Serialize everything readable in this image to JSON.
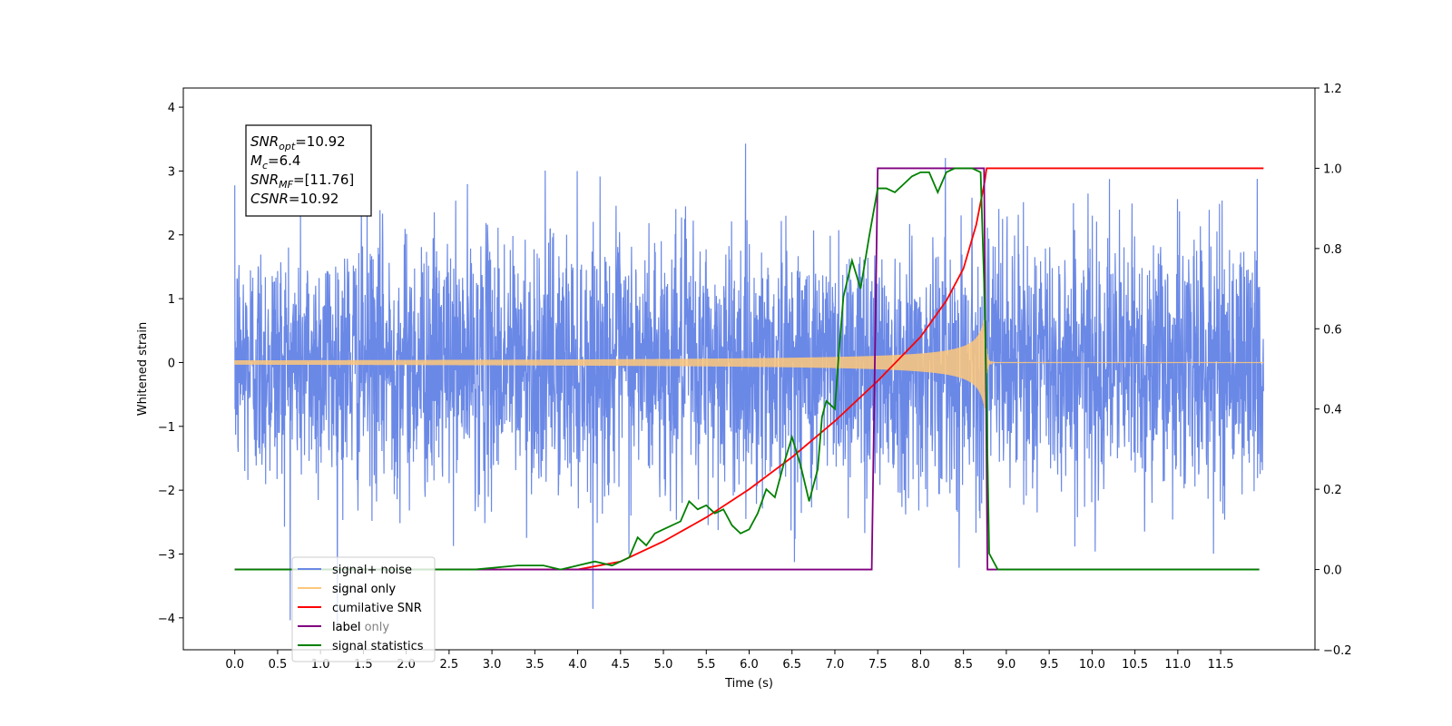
{
  "chart_data": {
    "type": "line",
    "title": "",
    "xlabel": "Time (s)",
    "ylabel": "Whitened strain",
    "xlim": [
      -0.6,
      12.6
    ],
    "ylim": [
      -4.5,
      4.3
    ],
    "y2lim": [
      -0.2,
      1.2
    ],
    "x_ticks": [
      0.0,
      0.5,
      1.0,
      1.5,
      2.0,
      2.5,
      3.0,
      3.5,
      4.0,
      4.5,
      5.0,
      5.5,
      6.0,
      6.5,
      7.0,
      7.5,
      8.0,
      8.5,
      9.0,
      9.5,
      10.0,
      10.5,
      11.0,
      11.5
    ],
    "x_tick_labels": [
      "0.0",
      "0.5",
      "1.0",
      "1.5",
      "2.0",
      "2.5",
      "3.0",
      "3.5",
      "4.0",
      "4.5",
      "5.0",
      "5.5",
      "6.0",
      "6.5",
      "7.0",
      "7.5",
      "8.0",
      "8.5",
      "9.0",
      "9.5",
      "10.0",
      "10.5",
      "11.0",
      "11.5"
    ],
    "y_ticks": [
      -4,
      -3,
      -2,
      -1,
      0,
      1,
      2,
      3,
      4
    ],
    "y_tick_labels": [
      "−4",
      "−3",
      "−2",
      "−1",
      "0",
      "1",
      "2",
      "3",
      "4"
    ],
    "y2_ticks": [
      -0.2,
      0.0,
      0.2,
      0.4,
      0.6,
      0.8,
      1.0,
      1.2
    ],
    "y2_tick_labels": [
      "−0.2",
      "0.0",
      "0.2",
      "0.4",
      "0.6",
      "0.8",
      "1.0",
      "1.2"
    ],
    "grid": false,
    "legend_position": "lower-left",
    "series": [
      {
        "name": "signal+ noise",
        "color": "#6a88e6",
        "axis": "left",
        "description_kind": "noise",
        "x_range": [
          0.0,
          12.0
        ],
        "noise_std": 1.0,
        "peak_range": [
          -4.1,
          3.9
        ]
      },
      {
        "name": "signal only",
        "color": "#fec87a",
        "axis": "left",
        "description_kind": "chirp",
        "x_range": [
          0.0,
          12.0
        ],
        "merger_time": 8.75,
        "peak_amplitude": 0.75
      },
      {
        "name": "cumilative SNR",
        "color": "#ff0000",
        "axis": "right",
        "x": [
          0.0,
          4.0,
          4.5,
          5.0,
          5.5,
          6.0,
          6.5,
          7.0,
          7.5,
          8.0,
          8.3,
          8.5,
          8.65,
          8.75,
          8.77,
          12.0
        ],
        "y": [
          0.0,
          0.0,
          0.02,
          0.07,
          0.13,
          0.2,
          0.28,
          0.37,
          0.47,
          0.58,
          0.67,
          0.75,
          0.86,
          0.97,
          1.0,
          1.0
        ]
      },
      {
        "name": "label",
        "color": "#800080",
        "axis": "right",
        "x": [
          0.0,
          7.43,
          7.5,
          8.74,
          8.78,
          11.95
        ],
        "y": [
          0.0,
          0.0,
          1.0,
          1.0,
          0.0,
          0.0
        ]
      },
      {
        "name": "signal statistics",
        "color": "#008000",
        "axis": "right",
        "x": [
          0.0,
          2.8,
          3.3,
          3.6,
          3.8,
          4.0,
          4.2,
          4.4,
          4.6,
          4.7,
          4.8,
          4.9,
          5.0,
          5.2,
          5.3,
          5.4,
          5.5,
          5.6,
          5.7,
          5.8,
          5.9,
          6.0,
          6.1,
          6.2,
          6.3,
          6.4,
          6.5,
          6.6,
          6.7,
          6.8,
          6.85,
          6.9,
          7.0,
          7.05,
          7.1,
          7.2,
          7.3,
          7.4,
          7.5,
          7.6,
          7.7,
          7.8,
          7.9,
          8.0,
          8.1,
          8.2,
          8.3,
          8.4,
          8.5,
          8.6,
          8.7,
          8.75,
          8.8,
          8.9,
          9.0,
          11.95
        ],
        "y": [
          0.0,
          0.0,
          0.01,
          0.01,
          0.0,
          0.01,
          0.02,
          0.01,
          0.03,
          0.08,
          0.06,
          0.09,
          0.1,
          0.12,
          0.17,
          0.15,
          0.16,
          0.14,
          0.15,
          0.11,
          0.09,
          0.1,
          0.14,
          0.2,
          0.18,
          0.26,
          0.33,
          0.26,
          0.17,
          0.25,
          0.38,
          0.42,
          0.4,
          0.55,
          0.68,
          0.77,
          0.7,
          0.83,
          0.95,
          0.95,
          0.94,
          0.96,
          0.98,
          0.99,
          0.99,
          0.94,
          0.99,
          1.0,
          1.0,
          1.0,
          0.99,
          0.65,
          0.04,
          0.0,
          0.0,
          0.0
        ]
      }
    ],
    "legend": [
      "signal+ noise",
      "signal only",
      "cumilative SNR",
      "label",
      "signal statistics"
    ],
    "legend_hidden_text": [
      "signal only",
      "label only"
    ],
    "annotation": {
      "lines": [
        {
          "base": "SNR",
          "sub": "opt",
          "value": "=10.92"
        },
        {
          "base": "M",
          "sub": "c",
          "value": "=6.4"
        },
        {
          "base": "SNR",
          "sub": "MF",
          "value": "=[11.76]"
        },
        {
          "base": "CSNR",
          "sub": "",
          "value": "=10.92"
        }
      ]
    }
  }
}
